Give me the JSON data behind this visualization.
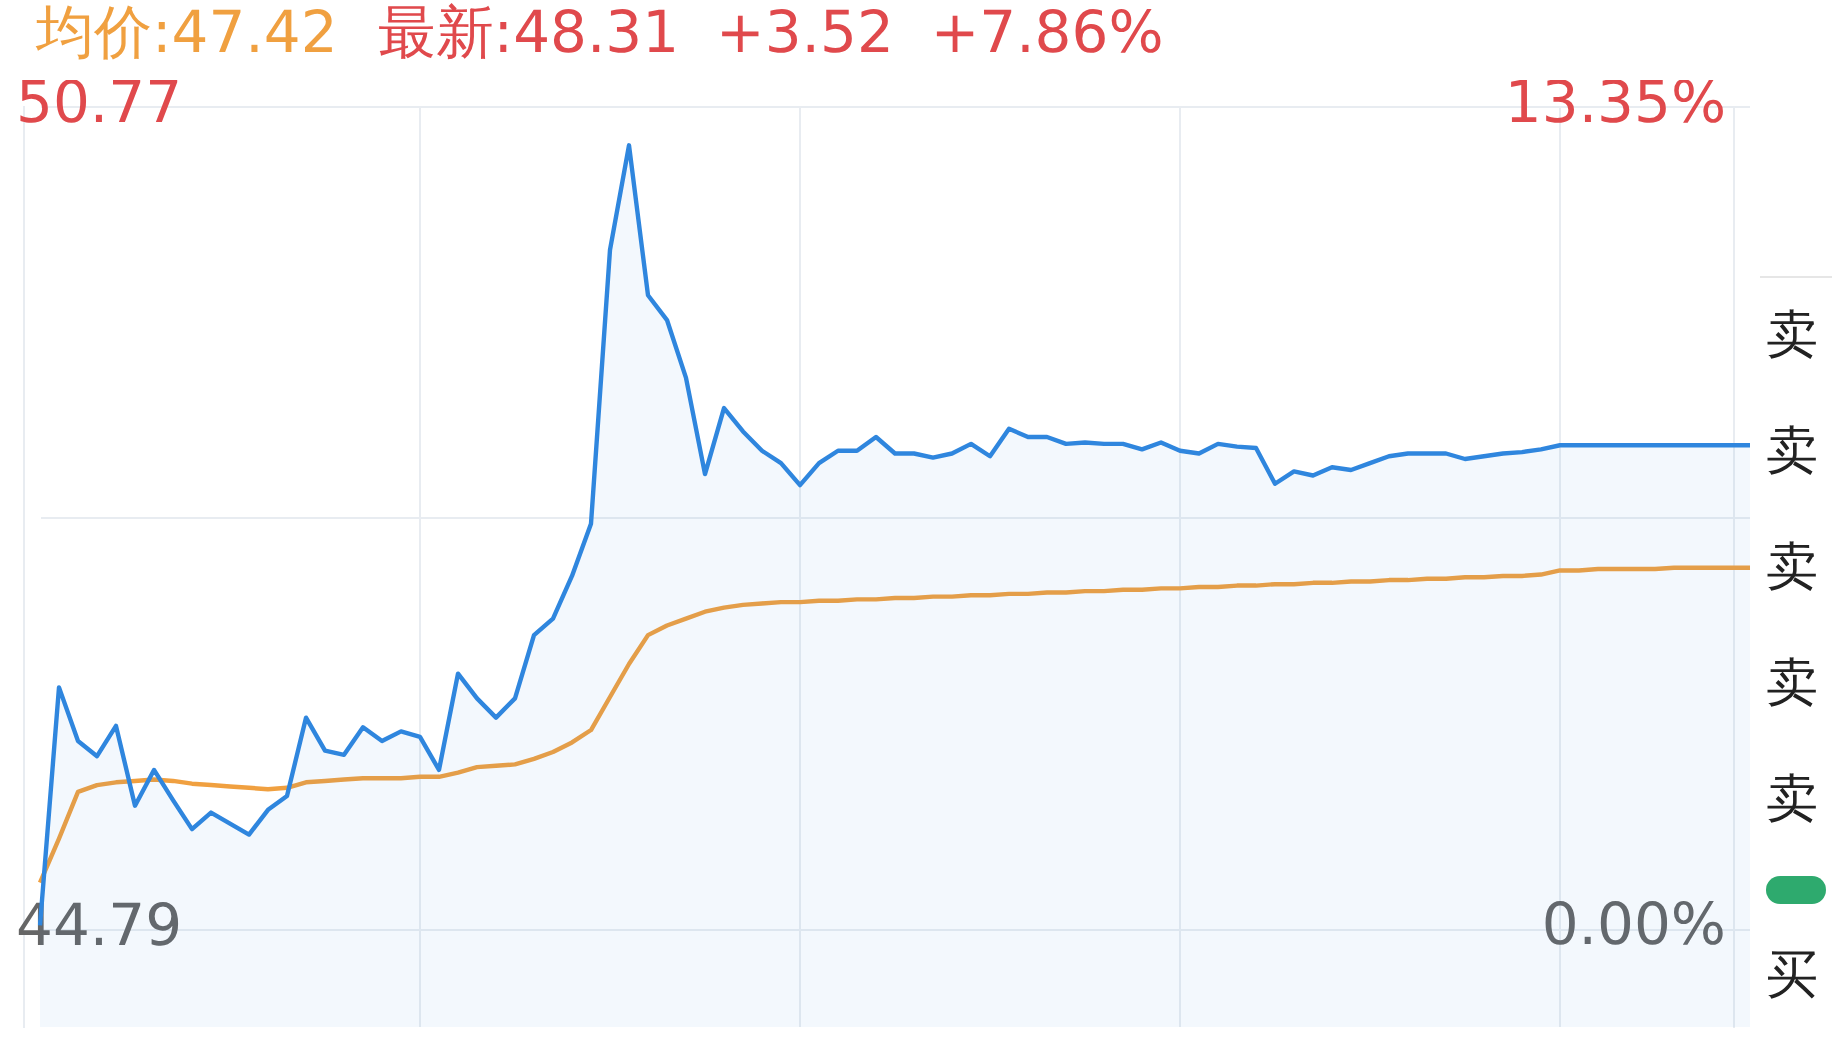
{
  "chart_data": {
    "type": "line",
    "title": "均价:47.42",
    "subtitle": "最新:48.31  +3.52  +7.86%",
    "annotations": [
      "卖",
      "卖",
      "卖",
      "卖",
      "卖",
      "买"
    ],
    "categories": [
      null,
      null,
      null,
      null,
      null,
      null,
      null,
      null,
      null,
      null,
      null,
      null,
      null,
      null,
      null,
      null,
      null,
      null,
      null,
      null,
      null,
      null,
      null,
      null,
      null,
      null,
      null,
      null,
      null,
      null,
      null,
      null,
      null,
      null,
      null,
      null,
      null,
      null,
      null,
      null,
      null,
      null,
      null,
      null,
      null,
      null,
      null,
      null,
      null,
      null,
      null,
      null,
      null,
      null,
      null,
      null,
      null,
      null,
      null,
      null,
      null,
      null,
      null,
      null,
      null,
      null,
      null,
      null,
      null,
      null,
      null,
      null,
      null,
      null,
      null,
      null,
      null,
      null,
      null,
      null,
      null,
      null,
      null,
      null,
      null,
      null,
      null,
      null,
      null,
      null,
      null
    ],
    "ylim": [
      44.08,
      50.77
    ],
    "yticks": [
      {
        "value": 44.79,
        "label": "44.79"
      },
      {
        "value": 47.78,
        "label": null
      },
      {
        "value": 50.77,
        "label": "50.77"
      }
    ],
    "y2lim": [
      -1.59,
      13.35
    ],
    "y2ticks": [
      {
        "value": 0,
        "label": "0.00%"
      },
      {
        "value": 13.35,
        "label": "13.35%"
      }
    ],
    "grid": true,
    "legend": false,
    "marker": "none",
    "series": [
      {
        "type": "area",
        "color": "#2f86de",
        "values": [
          44.82,
          46.55,
          46.16,
          46.05,
          46.27,
          45.69,
          45.95,
          45.73,
          45.52,
          45.64,
          45.56,
          45.48,
          45.66,
          45.76,
          46.33,
          46.09,
          46.06,
          46.26,
          46.16,
          46.23,
          46.19,
          45.95,
          46.65,
          46.47,
          46.33,
          46.47,
          46.93,
          47.05,
          47.36,
          47.74,
          49.73,
          50.49,
          49.4,
          49.22,
          48.8,
          48.1,
          48.58,
          48.41,
          48.27,
          48.18,
          48.02,
          48.18,
          48.27,
          48.27,
          48.37,
          48.25,
          48.25,
          48.22,
          48.25,
          48.32,
          48.23,
          48.43,
          48.37,
          48.37,
          48.32,
          48.33,
          48.32,
          48.32,
          48.28,
          48.33,
          48.27,
          48.25,
          48.32,
          48.3,
          48.29,
          48.03,
          48.12,
          48.09,
          48.15,
          48.13,
          48.18,
          48.23,
          48.25,
          48.25,
          48.25,
          48.21,
          48.23,
          48.25,
          48.26,
          48.28,
          48.31,
          48.31,
          48.31,
          48.31,
          48.31,
          48.31,
          48.31,
          48.31,
          48.31,
          48.31,
          48.31
        ]
      },
      {
        "type": "line",
        "color": "#f0a040",
        "values": [
          45.13,
          45.45,
          45.79,
          45.84,
          45.86,
          45.87,
          45.88,
          45.87,
          45.85,
          45.84,
          45.83,
          45.82,
          45.81,
          45.82,
          45.86,
          45.87,
          45.88,
          45.89,
          45.89,
          45.89,
          45.9,
          45.9,
          45.93,
          45.97,
          45.98,
          45.99,
          46.03,
          46.08,
          46.15,
          46.24,
          46.48,
          46.72,
          46.93,
          47.0,
          47.05,
          47.1,
          47.13,
          47.15,
          47.16,
          47.17,
          47.17,
          47.18,
          47.18,
          47.19,
          47.19,
          47.2,
          47.2,
          47.21,
          47.21,
          47.22,
          47.22,
          47.23,
          47.23,
          47.24,
          47.24,
          47.25,
          47.25,
          47.26,
          47.26,
          47.27,
          47.27,
          47.28,
          47.28,
          47.29,
          47.29,
          47.3,
          47.3,
          47.31,
          47.31,
          47.32,
          47.32,
          47.33,
          47.33,
          47.34,
          47.34,
          47.35,
          47.35,
          47.36,
          47.36,
          47.37,
          47.4,
          47.4,
          47.41,
          47.41,
          47.41,
          47.41,
          47.42,
          47.42,
          47.42,
          47.42,
          47.42
        ]
      }
    ]
  }
}
